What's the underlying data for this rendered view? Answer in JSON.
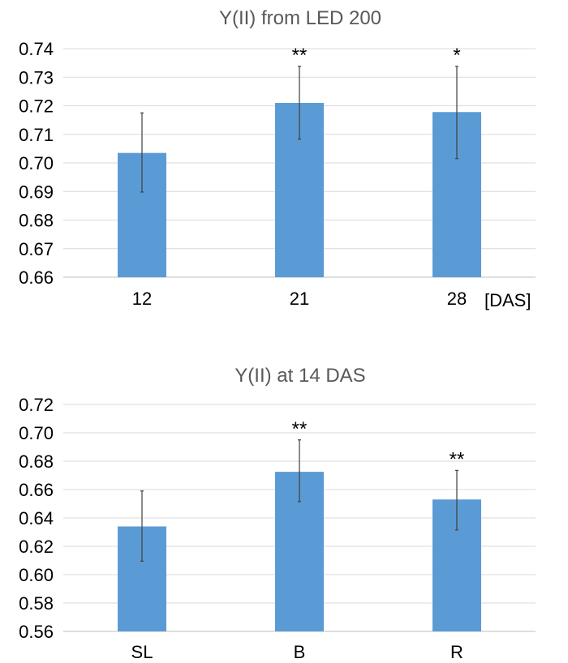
{
  "colors": {
    "bar": "#5b9bd5",
    "grid": "#d9d9d9",
    "title": "#595959"
  },
  "chart_data": [
    {
      "type": "bar",
      "title": "Y(II) from LED 200",
      "xlabel": "[DAS]",
      "ylabel": "",
      "categories": [
        "12",
        "21",
        "28"
      ],
      "values": [
        0.7035,
        0.721,
        0.7178
      ],
      "error_low": [
        0.6898,
        0.7083,
        0.7015
      ],
      "error_high": [
        0.7175,
        0.7338,
        0.7338
      ],
      "significance": [
        "",
        "**",
        "*"
      ],
      "ylim": [
        0.66,
        0.74
      ],
      "yticks": [
        "0.66",
        "0.67",
        "0.68",
        "0.69",
        "0.70",
        "0.71",
        "0.72",
        "0.73",
        "0.74"
      ],
      "grid": true,
      "legend": "none"
    },
    {
      "type": "bar",
      "title": "Y(II) at 14 DAS",
      "xlabel": "",
      "ylabel": "",
      "categories": [
        "SL",
        "B",
        "R"
      ],
      "values": [
        0.634,
        0.6725,
        0.653
      ],
      "error_low": [
        0.6095,
        0.6515,
        0.6315
      ],
      "error_high": [
        0.659,
        0.695,
        0.6735
      ],
      "significance": [
        "",
        "**",
        "**"
      ],
      "ylim": [
        0.56,
        0.72
      ],
      "yticks": [
        "0.56",
        "0.58",
        "0.60",
        "0.62",
        "0.64",
        "0.66",
        "0.68",
        "0.70",
        "0.72"
      ],
      "grid": true,
      "legend": "none"
    }
  ]
}
